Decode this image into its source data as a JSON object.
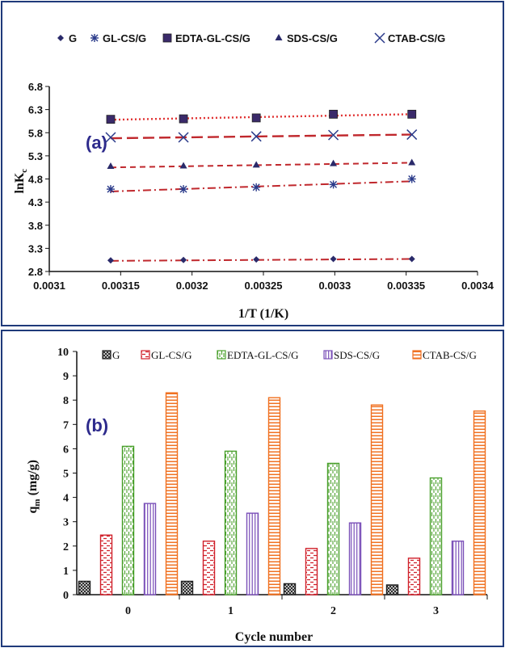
{
  "colors": {
    "frame": "#1f3a7a",
    "panel_label": "#2d2a8c",
    "G": "#222222",
    "GL-CS/G": "#d0202a",
    "EDTA-GL-CS/G": "#4aa02c",
    "SDS-CS/G": "#7a4fb8",
    "CTAB-CS/G": "#f07020",
    "line_G": "#c0282d",
    "line_GL": "#c0282d",
    "line_EDTA": "#e03030",
    "line_SDS": "#c0282d",
    "line_CTAB": "#c0282d",
    "marker_a": "#2a2a6a"
  },
  "chart_data": [
    {
      "type": "scatter",
      "panel_label": "(a)",
      "xlabel": "1/T (1/K)",
      "ylabel": "lnK",
      "ylabel_sub": "c",
      "xlim": [
        0.0031,
        0.0034
      ],
      "ylim": [
        2.8,
        6.8
      ],
      "x_ticks": [
        "0.0031",
        "0.00315",
        "0.0032",
        "0.00325",
        "0.0033",
        "0.00335",
        "0.0034"
      ],
      "y_ticks": [
        "2.8",
        "3.3",
        "3.8",
        "4.3",
        "4.8",
        "5.3",
        "5.8",
        "6.3",
        "6.8"
      ],
      "x": [
        0.003143,
        0.003194,
        0.003245,
        0.003299,
        0.003354
      ],
      "legend_position": "top",
      "series": [
        {
          "name": "G",
          "marker": "diamond",
          "values": [
            3.04,
            3.05,
            3.06,
            3.07,
            3.07
          ],
          "trend": [
            3.03,
            3.04,
            3.05,
            3.06,
            3.07
          ]
        },
        {
          "name": "GL-CS/G",
          "marker": "asterisk",
          "values": [
            4.58,
            4.58,
            4.62,
            4.68,
            4.8
          ],
          "trend": [
            4.53,
            4.58,
            4.63,
            4.69,
            4.75
          ]
        },
        {
          "name": "EDTA-GL-CS/G",
          "marker": "square",
          "values": [
            6.09,
            6.1,
            6.12,
            6.2,
            6.2
          ],
          "trend": [
            6.08,
            6.11,
            6.14,
            6.17,
            6.2
          ]
        },
        {
          "name": "SDS-CS/G",
          "marker": "triangle",
          "values": [
            5.07,
            5.08,
            5.1,
            5.13,
            5.15
          ],
          "trend": [
            5.05,
            5.07,
            5.1,
            5.12,
            5.15
          ]
        },
        {
          "name": "CTAB-CS/G",
          "marker": "x",
          "values": [
            5.7,
            5.7,
            5.72,
            5.75,
            5.76
          ],
          "trend": [
            5.68,
            5.7,
            5.72,
            5.74,
            5.76
          ]
        }
      ]
    },
    {
      "type": "bar",
      "panel_label": "(b)",
      "xlabel": "Cycle number",
      "ylabel": "q",
      "ylabel_sub": "m",
      "ylabel_unit": "(mg/g)",
      "categories": [
        "0",
        "1",
        "2",
        "3"
      ],
      "ylim": [
        0,
        10
      ],
      "y_ticks": [
        "0",
        "1",
        "2",
        "3",
        "4",
        "5",
        "6",
        "7",
        "8",
        "9",
        "10"
      ],
      "legend_position": "top",
      "series": [
        {
          "name": "G",
          "pattern": "crosshatch",
          "values": [
            0.55,
            0.55,
            0.45,
            0.4
          ]
        },
        {
          "name": "GL-CS/G",
          "pattern": "dashes",
          "values": [
            2.45,
            2.2,
            1.9,
            1.5
          ]
        },
        {
          "name": "EDTA-GL-CS/G",
          "pattern": "vertical-dashes",
          "values": [
            6.1,
            5.9,
            5.4,
            4.8
          ]
        },
        {
          "name": "SDS-CS/G",
          "pattern": "vertical-lines",
          "values": [
            3.75,
            3.35,
            2.95,
            2.2
          ]
        },
        {
          "name": "CTAB-CS/G",
          "pattern": "horizontal-lines",
          "values": [
            8.3,
            8.1,
            7.8,
            7.55
          ]
        }
      ]
    }
  ]
}
